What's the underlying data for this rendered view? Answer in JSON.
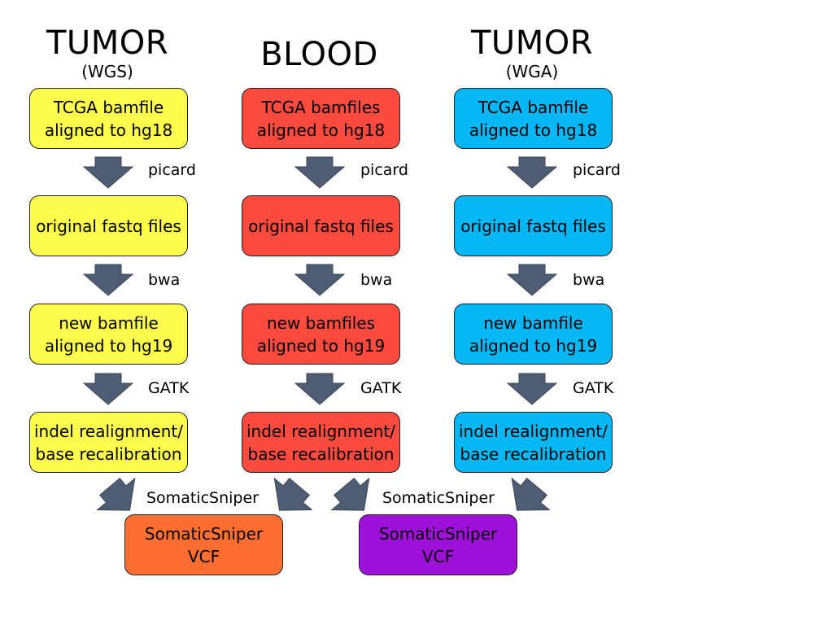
{
  "columns": [
    {
      "title": "TUMOR",
      "subtitle": "(WGS)",
      "color": "#fdfd4d",
      "steps": [
        "TCGA bamfile\naligned to hg18",
        "original fastq files",
        "new bamfile\naligned to hg19",
        "indel realignment/\nbase recalibration"
      ]
    },
    {
      "title": "BLOOD",
      "subtitle": "",
      "color": "#fb4a3e",
      "steps": [
        "TCGA bamfiles\naligned to hg18",
        "original fastq files",
        "new bamfiles\naligned to hg19",
        "indel realignment/\nbase recalibration"
      ]
    },
    {
      "title": "TUMOR",
      "subtitle": "(WGA)",
      "color": "#05b7f5",
      "steps": [
        "TCGA bamfile\naligned to hg18",
        "original fastq files",
        "new bamfile\naligned to hg19",
        "indel realignment/\nbase recalibration"
      ]
    }
  ],
  "step_tools": [
    "picard",
    "bwa",
    "GATK"
  ],
  "outputs": [
    {
      "label": "SomaticSniper\nVCF",
      "tool": "SomaticSniper",
      "color": "#fd6f31"
    },
    {
      "label": "SomaticSniper\nVCF",
      "tool": "SomaticSniper",
      "color": "#9d11d8"
    }
  ],
  "arrow_color": "#4f5d74"
}
